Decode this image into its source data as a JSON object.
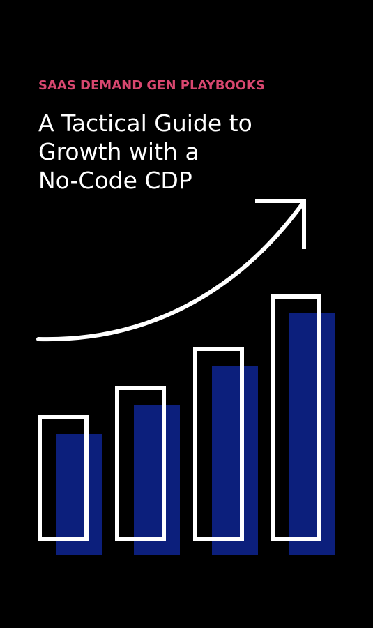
{
  "cover": {
    "eyebrow": "SAAS DEMAND GEN PLAYBOOKS",
    "title_lines": [
      "A Tactical Guide to",
      "Growth with a",
      "No-Code CDP"
    ]
  }
}
